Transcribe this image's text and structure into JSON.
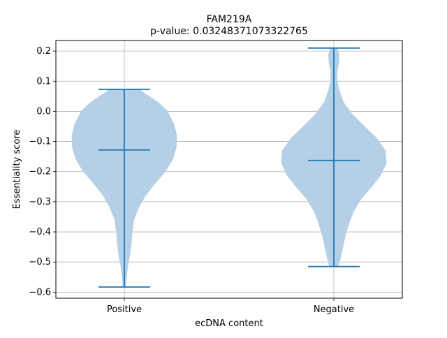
{
  "chart_data": {
    "type": "violin",
    "title": "FAM219A",
    "subtitle": "p-value: 0.03248371073322765",
    "xlabel": "ecDNA content",
    "ylabel": "Essentiality score",
    "categories": [
      "Positive",
      "Negative"
    ],
    "ylim": [
      -0.62,
      0.235
    ],
    "yticks": [
      -0.6,
      -0.5,
      -0.4,
      -0.3,
      -0.2,
      -0.1,
      0.0,
      0.1,
      0.2
    ],
    "ytick_labels": [
      "−0.6",
      "−0.5",
      "−0.4",
      "−0.3",
      "−0.2",
      "−0.1",
      "0.0",
      "0.1",
      "0.2"
    ],
    "grid": true,
    "fill_color": "#b5d0e6",
    "line_color": "#1f77b4",
    "violins": [
      {
        "category": "Positive",
        "min": -0.583,
        "max": 0.073,
        "mean": -0.128,
        "density": [
          [
            -0.583,
            0.02
          ],
          [
            -0.56,
            0.035
          ],
          [
            -0.52,
            0.06
          ],
          [
            -0.48,
            0.1
          ],
          [
            -0.44,
            0.13
          ],
          [
            -0.4,
            0.15
          ],
          [
            -0.36,
            0.18
          ],
          [
            -0.32,
            0.27
          ],
          [
            -0.28,
            0.4
          ],
          [
            -0.24,
            0.58
          ],
          [
            -0.2,
            0.78
          ],
          [
            -0.16,
            0.92
          ],
          [
            -0.12,
            0.99
          ],
          [
            -0.08,
            1.0
          ],
          [
            -0.04,
            0.94
          ],
          [
            0.0,
            0.82
          ],
          [
            0.03,
            0.64
          ],
          [
            0.06,
            0.38
          ],
          [
            0.073,
            0.28
          ]
        ]
      },
      {
        "category": "Negative",
        "min": -0.515,
        "max": 0.21,
        "mean": -0.163,
        "density": [
          [
            -0.515,
            0.08
          ],
          [
            -0.49,
            0.12
          ],
          [
            -0.45,
            0.17
          ],
          [
            -0.41,
            0.22
          ],
          [
            -0.37,
            0.29
          ],
          [
            -0.33,
            0.38
          ],
          [
            -0.29,
            0.52
          ],
          [
            -0.25,
            0.72
          ],
          [
            -0.21,
            0.9
          ],
          [
            -0.17,
            1.0
          ],
          [
            -0.13,
            0.98
          ],
          [
            -0.09,
            0.82
          ],
          [
            -0.05,
            0.58
          ],
          [
            -0.01,
            0.35
          ],
          [
            0.03,
            0.18
          ],
          [
            0.07,
            0.1
          ],
          [
            0.1,
            0.06
          ],
          [
            0.13,
            0.06
          ],
          [
            0.16,
            0.09
          ],
          [
            0.19,
            0.1
          ],
          [
            0.21,
            0.06
          ]
        ]
      }
    ]
  }
}
